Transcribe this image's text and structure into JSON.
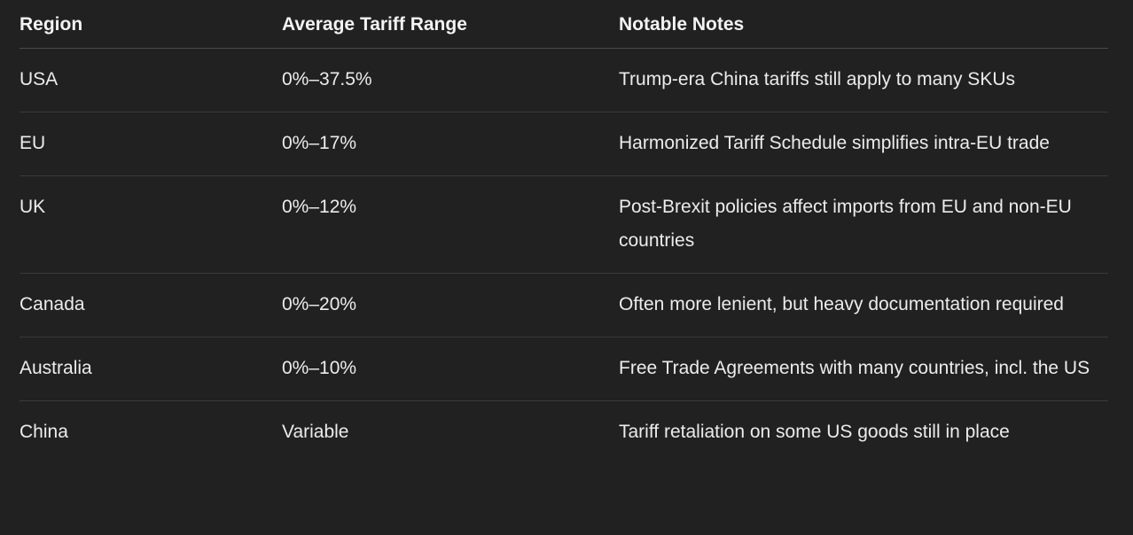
{
  "table": {
    "headers": [
      "Region",
      "Average Tariff Range",
      "Notable Notes"
    ],
    "rows": [
      {
        "region": "USA",
        "range": "0%–37.5%",
        "note": "Trump-era China tariffs still apply to many SKUs"
      },
      {
        "region": "EU",
        "range": "0%–17%",
        "note": "Harmonized Tariff Schedule simplifies intra-EU trade"
      },
      {
        "region": "UK",
        "range": "0%–12%",
        "note": "Post-Brexit policies affect imports from EU and non-EU countries"
      },
      {
        "region": "Canada",
        "range": "0%–20%",
        "note": "Often more lenient, but heavy documentation required"
      },
      {
        "region": "Australia",
        "range": "0%–10%",
        "note": "Free Trade Agreements with many countries, incl. the US"
      },
      {
        "region": "China",
        "range": "Variable",
        "note": "Tariff retaliation on some US goods still in place"
      }
    ]
  },
  "colors": {
    "background": "#212121",
    "text": "#ececec",
    "divider": "#3a3a3a"
  }
}
